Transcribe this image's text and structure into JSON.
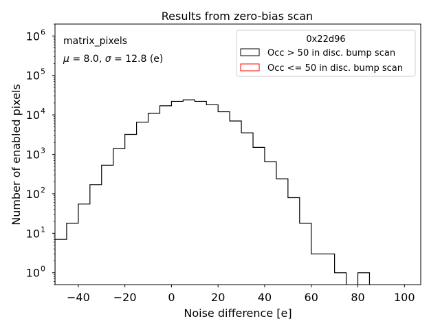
{
  "chart_data": {
    "type": "histogram",
    "title": "Results from zero-bias scan",
    "xlabel": "Noise difference [e]",
    "ylabel": "Number of enabled pixels",
    "yscale": "log",
    "xlim": [
      -50,
      107
    ],
    "ylim": [
      0.5,
      2000000
    ],
    "x_ticks": [
      -40,
      -20,
      0,
      20,
      40,
      60,
      80,
      100
    ],
    "y_ticks": [
      {
        "value": 1,
        "base": "10",
        "exp": "0"
      },
      {
        "value": 10,
        "base": "10",
        "exp": "1"
      },
      {
        "value": 100,
        "base": "10",
        "exp": "2"
      },
      {
        "value": 1000,
        "base": "10",
        "exp": "3"
      },
      {
        "value": 10000,
        "base": "10",
        "exp": "4"
      },
      {
        "value": 100000,
        "base": "10",
        "exp": "5"
      },
      {
        "value": 1000000,
        "base": "10",
        "exp": "6"
      }
    ],
    "annotations": {
      "name": "matrix_pixels",
      "mu_sym": "μ",
      "mu_text": " = 8.0, ",
      "sigma_sym": "σ",
      "sigma_text": " = 12.8 (e)"
    },
    "legend": {
      "title": "0x22d96",
      "placement": "upper right",
      "entries": [
        {
          "label": "Occ > 50 in disc. bump scan",
          "color": "#000000"
        },
        {
          "label": "Occ <= 50 in disc. bump scan",
          "color": "#ff0000"
        }
      ]
    },
    "series": [
      {
        "name": "Occ > 50 in disc. bump scan",
        "color": "#000000",
        "bin_edges": [
          -50,
          -45,
          -40,
          -35,
          -30,
          -25,
          -20,
          -15,
          -10,
          -5,
          0,
          5,
          10,
          15,
          20,
          25,
          30,
          35,
          40,
          45,
          50,
          55,
          60,
          65,
          70,
          75,
          80,
          85
        ],
        "counts": [
          7,
          18,
          55,
          170,
          530,
          1400,
          3200,
          6500,
          11000,
          17000,
          22000,
          24000,
          22000,
          18000,
          12000,
          7000,
          3500,
          1500,
          650,
          240,
          80,
          18,
          3,
          3,
          1,
          0,
          1
        ]
      },
      {
        "name": "Occ <= 50 in disc. bump scan",
        "color": "#ff0000",
        "bin_edges": [],
        "counts": []
      }
    ]
  }
}
